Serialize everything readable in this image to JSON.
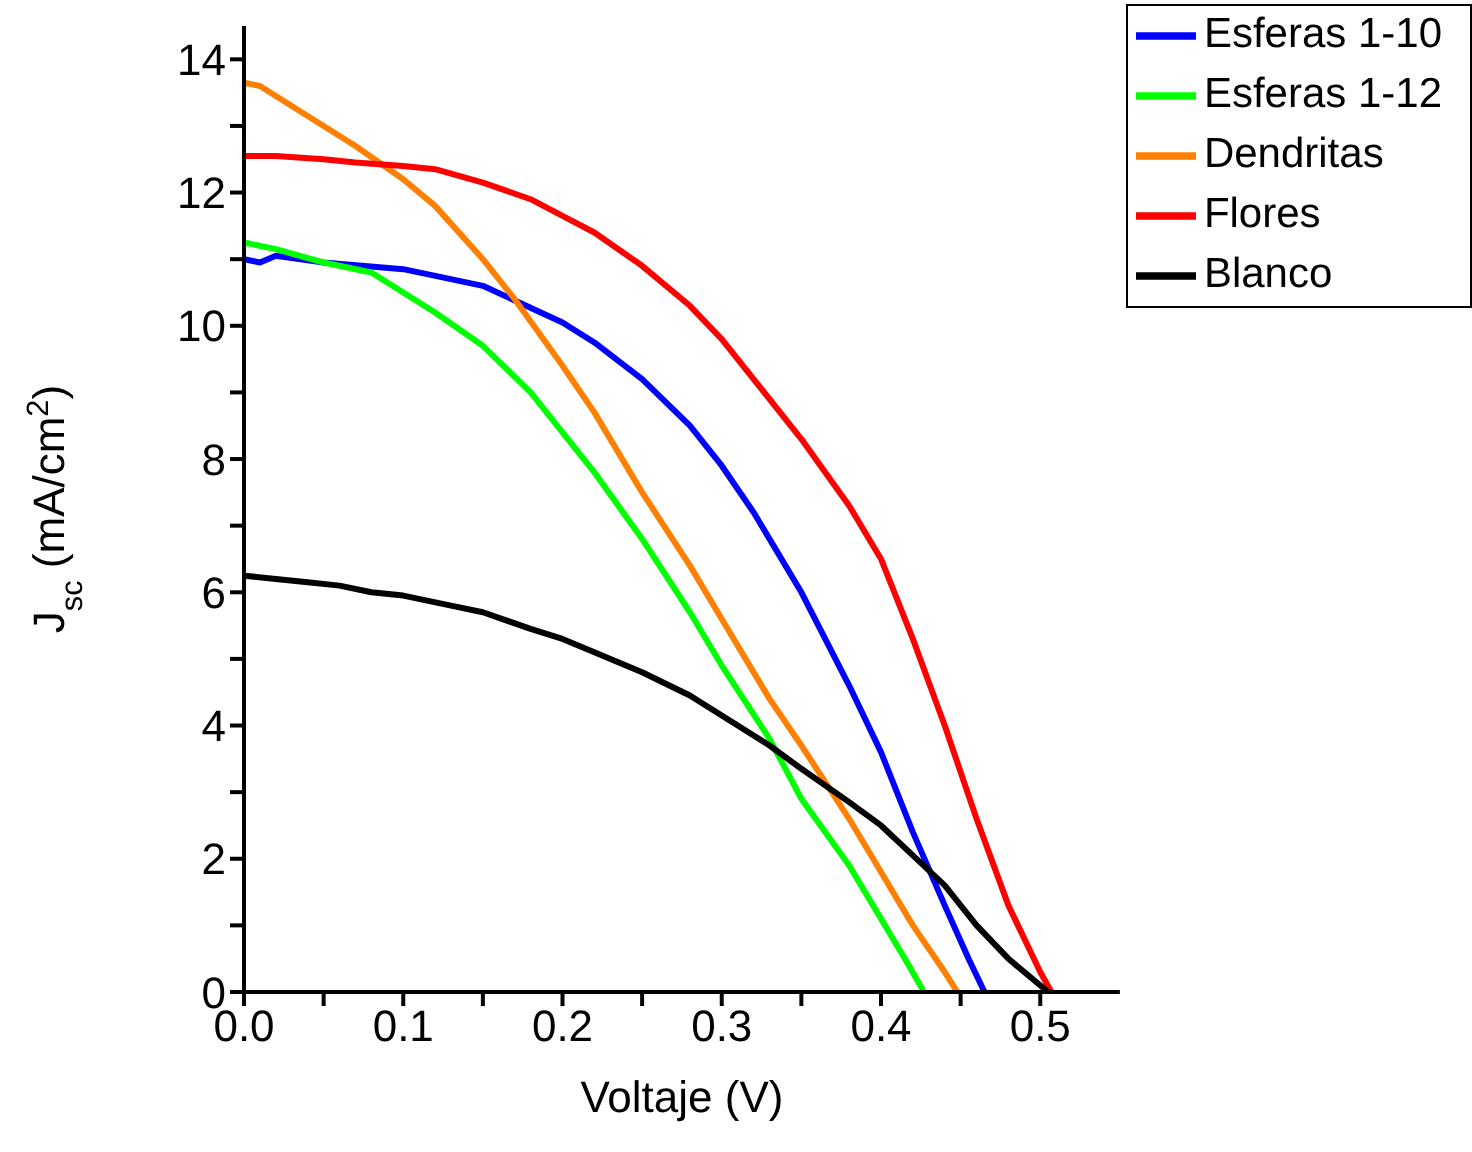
{
  "chart_data": {
    "type": "line",
    "xlabel": "Voltaje (V)",
    "ylabel": "J$_{sc}$ (mA/cm$^{2}$)",
    "xlim": [
      0,
      0.55
    ],
    "ylim": [
      0,
      14.5
    ],
    "xticks": [
      {
        "value": 0,
        "label": "0.0"
      },
      {
        "value": 0.05,
        "label": null
      },
      0.1,
      {
        "value": 0.15,
        "label": null
      },
      0.2,
      {
        "value": 0.25,
        "label": null
      },
      0.3,
      {
        "value": 0.35,
        "label": null
      },
      0.4,
      {
        "value": 0.45,
        "label": null
      },
      0.5
    ],
    "yticks": [
      0,
      {
        "value": 1,
        "label": null
      },
      2,
      {
        "value": 3,
        "label": null
      },
      4,
      {
        "value": 5,
        "label": null
      },
      6,
      {
        "value": 7,
        "label": null
      },
      8,
      {
        "value": 9,
        "label": null
      },
      10,
      {
        "value": 11,
        "label": null
      },
      12,
      {
        "value": 13,
        "label": null
      },
      14
    ],
    "grid": false,
    "legend": "top right",
    "marker": "none",
    "line_style": "solid",
    "series": [
      {
        "name": "Esferas 1-10",
        "color": "#0000ff",
        "x": [
          0,
          0.01,
          0.02,
          0.05,
          0.1,
          0.15,
          0.2,
          0.22,
          0.25,
          0.28,
          0.3,
          0.32,
          0.35,
          0.38,
          0.4,
          0.42,
          0.44,
          0.455,
          0.465
        ],
        "values": [
          11.0,
          10.95,
          11.05,
          10.95,
          10.85,
          10.6,
          10.05,
          9.75,
          9.2,
          8.5,
          7.9,
          7.2,
          6.0,
          4.6,
          3.6,
          2.4,
          1.3,
          0.5,
          0
        ]
      },
      {
        "name": "Esferas 1-12",
        "color": "#00ff00",
        "x": [
          0,
          0.02,
          0.05,
          0.08,
          0.1,
          0.12,
          0.15,
          0.18,
          0.2,
          0.22,
          0.25,
          0.28,
          0.3,
          0.33,
          0.35,
          0.38,
          0.4,
          0.415,
          0.427
        ],
        "values": [
          11.25,
          11.15,
          10.95,
          10.8,
          10.5,
          10.2,
          9.7,
          9.0,
          8.4,
          7.8,
          6.8,
          5.7,
          4.9,
          3.8,
          2.9,
          1.9,
          1.1,
          0.5,
          0
        ]
      },
      {
        "name": "Dendritas",
        "color": "#ff8000",
        "x": [
          0,
          0.01,
          0.03,
          0.05,
          0.07,
          0.1,
          0.12,
          0.15,
          0.17,
          0.2,
          0.22,
          0.25,
          0.28,
          0.3,
          0.33,
          0.35,
          0.38,
          0.4,
          0.42,
          0.44,
          0.448
        ],
        "values": [
          13.65,
          13.6,
          13.3,
          13.0,
          12.7,
          12.2,
          11.8,
          11.0,
          10.4,
          9.4,
          8.7,
          7.5,
          6.4,
          5.6,
          4.4,
          3.7,
          2.6,
          1.8,
          1.0,
          0.3,
          0
        ]
      },
      {
        "name": "Flores",
        "color": "#ff0000",
        "x": [
          0,
          0.02,
          0.05,
          0.07,
          0.1,
          0.12,
          0.15,
          0.18,
          0.2,
          0.22,
          0.25,
          0.28,
          0.3,
          0.32,
          0.35,
          0.38,
          0.4,
          0.42,
          0.44,
          0.46,
          0.48,
          0.5,
          0.507
        ],
        "values": [
          12.55,
          12.55,
          12.5,
          12.45,
          12.4,
          12.35,
          12.15,
          11.9,
          11.65,
          11.4,
          10.9,
          10.3,
          9.8,
          9.2,
          8.3,
          7.3,
          6.5,
          5.3,
          4.0,
          2.6,
          1.3,
          0.3,
          0
        ]
      },
      {
        "name": "Blanco",
        "color": "#000000",
        "x": [
          0,
          0.02,
          0.04,
          0.06,
          0.08,
          0.1,
          0.13,
          0.15,
          0.18,
          0.2,
          0.22,
          0.25,
          0.28,
          0.3,
          0.33,
          0.35,
          0.38,
          0.4,
          0.42,
          0.44,
          0.46,
          0.48,
          0.505
        ],
        "values": [
          6.25,
          6.2,
          6.15,
          6.1,
          6.0,
          5.95,
          5.8,
          5.7,
          5.45,
          5.3,
          5.1,
          4.8,
          4.45,
          4.15,
          3.7,
          3.35,
          2.85,
          2.5,
          2.05,
          1.6,
          1.0,
          0.5,
          0
        ]
      }
    ]
  }
}
